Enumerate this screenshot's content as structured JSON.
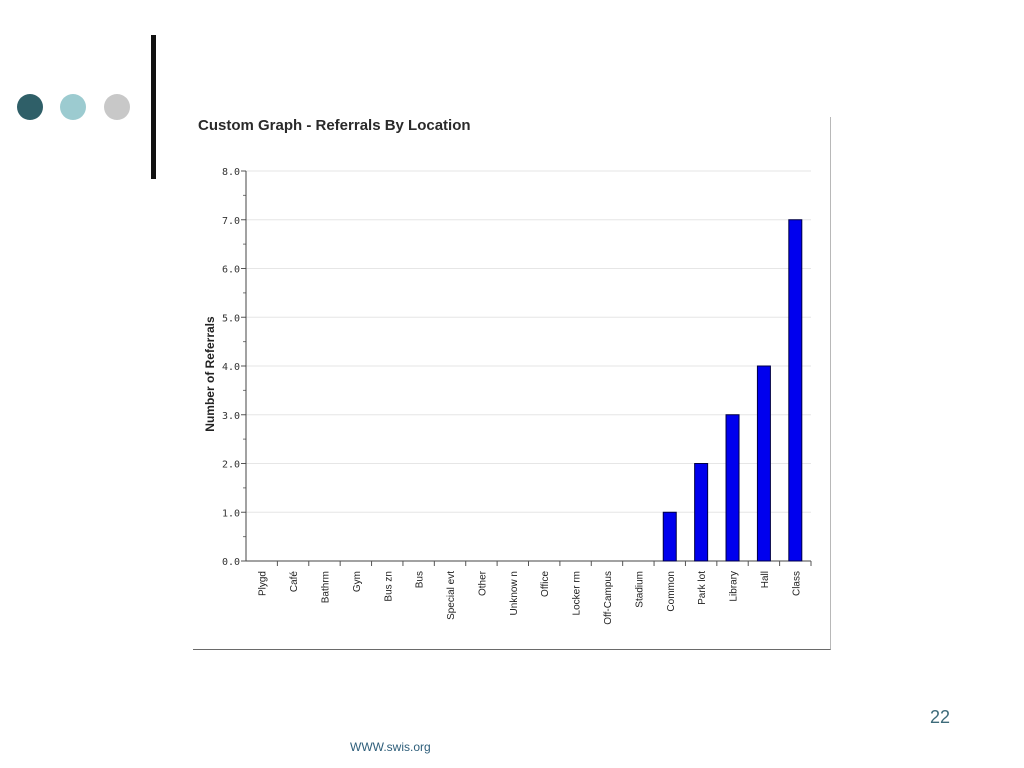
{
  "slide": {
    "number": "22",
    "footer": "WWW.swis.org",
    "dot_colors": [
      "#2f5f68",
      "#9ccbd0",
      "#c8c8c8"
    ],
    "accent_color": "#111111"
  },
  "chart_data": {
    "type": "bar",
    "title": "Custom Graph - Referrals By Location",
    "xlabel": "",
    "ylabel": "Number of Referrals",
    "ylim": [
      0,
      8
    ],
    "yticks": [
      "0.0",
      "1.0",
      "2.0",
      "3.0",
      "4.0",
      "5.0",
      "6.0",
      "7.0",
      "8.0"
    ],
    "categories": [
      "Plygd",
      "Café",
      "Bathrm",
      "Gym",
      "Bus zn",
      "Bus",
      "Special evt",
      "Other",
      "Unknow n",
      "Office",
      "Locker rm",
      "Off-Campus",
      "Stadium",
      "Common",
      "Park lot",
      "Library",
      "Hall",
      "Class"
    ],
    "values": [
      0,
      0,
      0,
      0,
      0,
      0,
      0,
      0,
      0,
      0,
      0,
      0,
      0,
      1,
      2,
      3,
      4,
      7
    ],
    "bar_color": "#0000ee",
    "grid": true,
    "legend": "none"
  }
}
